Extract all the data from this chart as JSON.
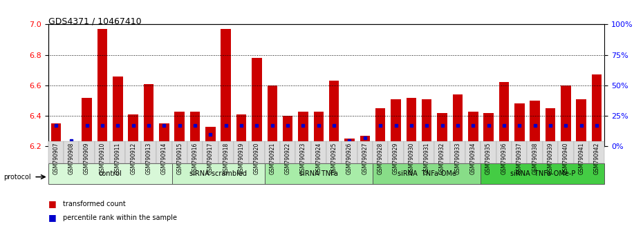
{
  "title": "GDS4371 / 10467410",
  "samples": [
    "GSM790907",
    "GSM790908",
    "GSM790909",
    "GSM790910",
    "GSM790911",
    "GSM790912",
    "GSM790913",
    "GSM790914",
    "GSM790915",
    "GSM790916",
    "GSM790917",
    "GSM790918",
    "GSM790919",
    "GSM790920",
    "GSM790921",
    "GSM790922",
    "GSM790923",
    "GSM790924",
    "GSM790925",
    "GSM790926",
    "GSM790927",
    "GSM790928",
    "GSM790929",
    "GSM790930",
    "GSM790931",
    "GSM790932",
    "GSM790933",
    "GSM790934",
    "GSM790935",
    "GSM790936",
    "GSM790937",
    "GSM790938",
    "GSM790939",
    "GSM790940",
    "GSM790941",
    "GSM790942"
  ],
  "red_values": [
    6.35,
    6.21,
    6.52,
    6.97,
    6.66,
    6.41,
    6.61,
    6.35,
    6.43,
    6.43,
    6.33,
    6.97,
    6.41,
    6.78,
    6.6,
    6.4,
    6.43,
    6.43,
    6.63,
    6.25,
    6.27,
    6.45,
    6.51,
    6.52,
    6.51,
    6.42,
    6.54,
    6.43,
    6.42,
    6.62,
    6.48,
    6.5,
    6.45,
    6.6,
    6.51,
    6.67
  ],
  "blue_percentile": [
    17,
    5,
    17,
    17,
    17,
    17,
    17,
    17,
    17,
    17,
    10,
    17,
    17,
    17,
    17,
    17,
    17,
    17,
    17,
    5,
    7,
    17,
    17,
    17,
    17,
    17,
    17,
    17,
    17,
    17,
    17,
    17,
    17,
    17,
    17,
    17
  ],
  "groups": [
    {
      "label": "control",
      "start": 0,
      "end": 8
    },
    {
      "label": "siRNA scrambled",
      "start": 8,
      "end": 14
    },
    {
      "label": "siRNA TNFa",
      "start": 14,
      "end": 21
    },
    {
      "label": "siRNA  TNFa-OMe",
      "start": 21,
      "end": 28
    },
    {
      "label": "siRNA  TNFa-OMe-P",
      "start": 28,
      "end": 36
    }
  ],
  "group_colors": [
    "#d8f8d8",
    "#ccf5cc",
    "#a8eca8",
    "#88dd88",
    "#44cc44"
  ],
  "ymin": 6.2,
  "ymax": 7.0,
  "yticks": [
    6.2,
    6.4,
    6.6,
    6.8,
    7.0
  ],
  "right_yticks_vals": [
    0,
    25,
    50,
    75,
    100
  ],
  "right_ytick_labels": [
    "0%",
    "25%",
    "50%",
    "75%",
    "100%"
  ],
  "bar_color": "#cc0000",
  "blue_color": "#0000cc",
  "bg_color": "#ffffff"
}
